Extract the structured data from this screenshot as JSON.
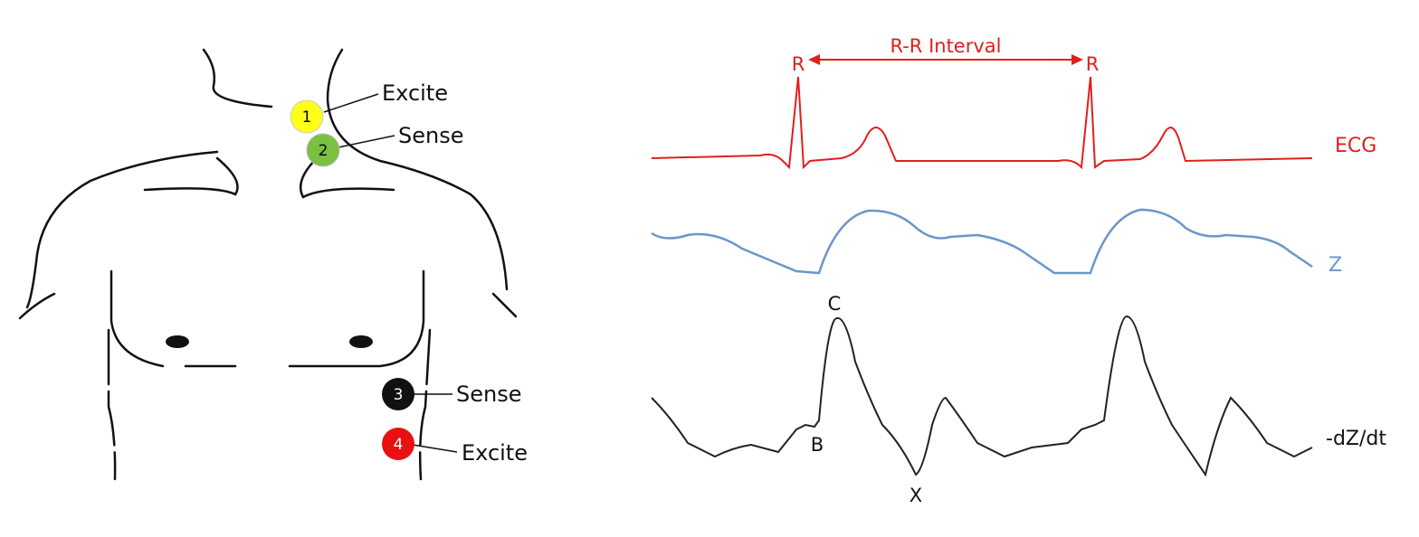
{
  "electrodes": [
    {
      "number": "1",
      "label": "Excite"
    },
    {
      "number": "2",
      "label": "Sense"
    },
    {
      "number": "3",
      "label": "Sense"
    },
    {
      "number": "4",
      "label": "Excite"
    }
  ],
  "waveforms": {
    "interval": {
      "start": "R",
      "end": "R",
      "label": "R-R Interval"
    },
    "traces": [
      "ECG",
      "Z",
      "-dZ/dt"
    ],
    "points": {
      "c": "C",
      "b": "B",
      "x": "X"
    }
  }
}
